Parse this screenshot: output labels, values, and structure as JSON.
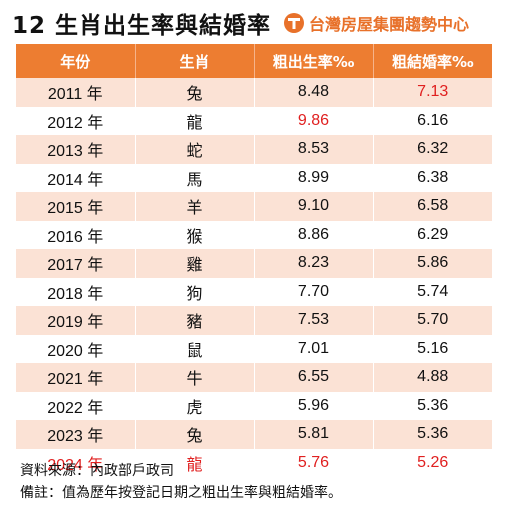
{
  "header": {
    "title": "12 生肖出生率與結婚率",
    "logo_text": "台灣房屋集團趨勢中心",
    "logo_color": "#e8712a"
  },
  "table": {
    "columns": [
      "年份",
      "生肖",
      "粗出生率‰",
      "粗結婚率‰"
    ],
    "rows": [
      {
        "year": "2011 年",
        "zodiac": "兔",
        "birth": "8.48",
        "marriage": "7.13",
        "highlight": [
          "marriage"
        ]
      },
      {
        "year": "2012 年",
        "zodiac": "龍",
        "birth": "9.86",
        "marriage": "6.16",
        "highlight": [
          "birth"
        ]
      },
      {
        "year": "2013 年",
        "zodiac": "蛇",
        "birth": "8.53",
        "marriage": "6.32",
        "highlight": []
      },
      {
        "year": "2014 年",
        "zodiac": "馬",
        "birth": "8.99",
        "marriage": "6.38",
        "highlight": []
      },
      {
        "year": "2015 年",
        "zodiac": "羊",
        "birth": "9.10",
        "marriage": "6.58",
        "highlight": []
      },
      {
        "year": "2016 年",
        "zodiac": "猴",
        "birth": "8.86",
        "marriage": "6.29",
        "highlight": []
      },
      {
        "year": "2017 年",
        "zodiac": "雞",
        "birth": "8.23",
        "marriage": "5.86",
        "highlight": []
      },
      {
        "year": "2018 年",
        "zodiac": "狗",
        "birth": "7.70",
        "marriage": "5.74",
        "highlight": []
      },
      {
        "year": "2019 年",
        "zodiac": "豬",
        "birth": "7.53",
        "marriage": "5.70",
        "highlight": []
      },
      {
        "year": "2020 年",
        "zodiac": "鼠",
        "birth": "7.01",
        "marriage": "5.16",
        "highlight": []
      },
      {
        "year": "2021 年",
        "zodiac": "牛",
        "birth": "6.55",
        "marriage": "4.88",
        "highlight": []
      },
      {
        "year": "2022 年",
        "zodiac": "虎",
        "birth": "5.96",
        "marriage": "5.36",
        "highlight": []
      },
      {
        "year": "2023 年",
        "zodiac": "兔",
        "birth": "5.81",
        "marriage": "5.36",
        "highlight": []
      },
      {
        "year": "2024 年",
        "zodiac": "龍",
        "birth": "5.76",
        "marriage": "5.26",
        "highlight": [
          "year",
          "zodiac",
          "birth",
          "marriage"
        ]
      }
    ],
    "header_color": "#ed7d31",
    "stripe_color": "#fbe2d5",
    "highlight_color": "#e02020"
  },
  "notes": {
    "source": "資料來源：內政部戶政司",
    "remark": "備註：值為歷年按登記日期之粗出生率與粗結婚率。"
  }
}
